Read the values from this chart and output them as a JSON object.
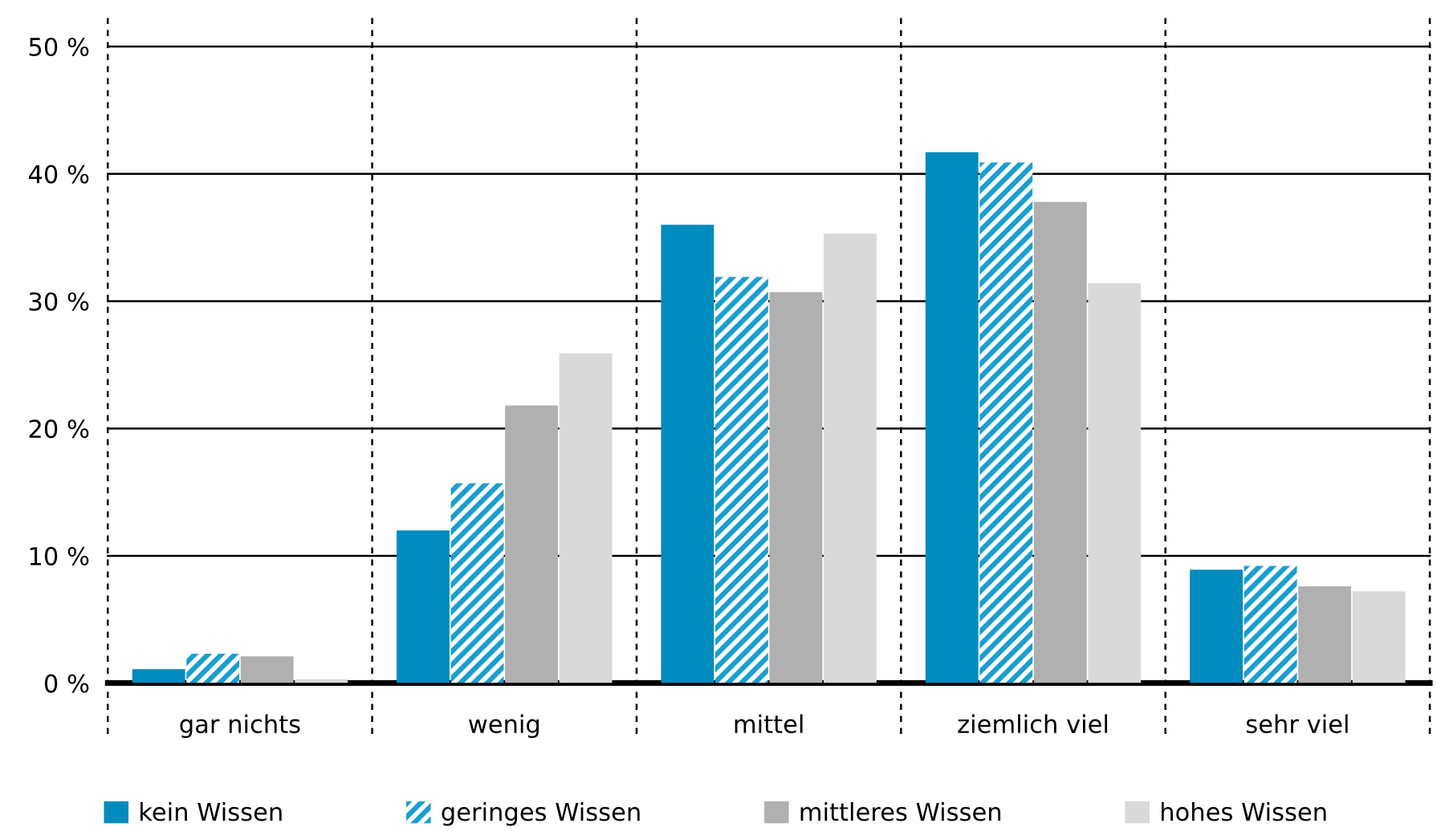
{
  "chart_data": {
    "type": "bar",
    "categories": [
      "gar nichts",
      "wenig",
      "mittel",
      "ziemlich viel",
      "sehr viel"
    ],
    "series": [
      {
        "name": "kein Wissen",
        "color": "#008bbf",
        "values": [
          1.1,
          12.0,
          36.0,
          41.7,
          8.9
        ]
      },
      {
        "name": "geringes Wissen",
        "color": "#1a9fd0",
        "values": [
          2.3,
          15.7,
          31.9,
          40.9,
          9.2
        ]
      },
      {
        "name": "mittleres Wissen",
        "color": "#b0b0b0",
        "values": [
          2.1,
          21.8,
          30.7,
          37.8,
          7.6
        ]
      },
      {
        "name": "hohes Wissen",
        "color": "#d9d9d9",
        "values": [
          0.3,
          25.9,
          35.3,
          31.4,
          7.2
        ]
      }
    ],
    "ylim": [
      0,
      50
    ],
    "yticks": [
      {
        "value": 0,
        "label": "0 %"
      },
      {
        "value": 10,
        "label": "10 %"
      },
      {
        "value": 20,
        "label": "20 %"
      },
      {
        "value": 30,
        "label": "30 %"
      },
      {
        "value": 40,
        "label": "40 %"
      },
      {
        "value": 50,
        "label": "50 %"
      }
    ],
    "grid": true,
    "legend": "bottom"
  }
}
